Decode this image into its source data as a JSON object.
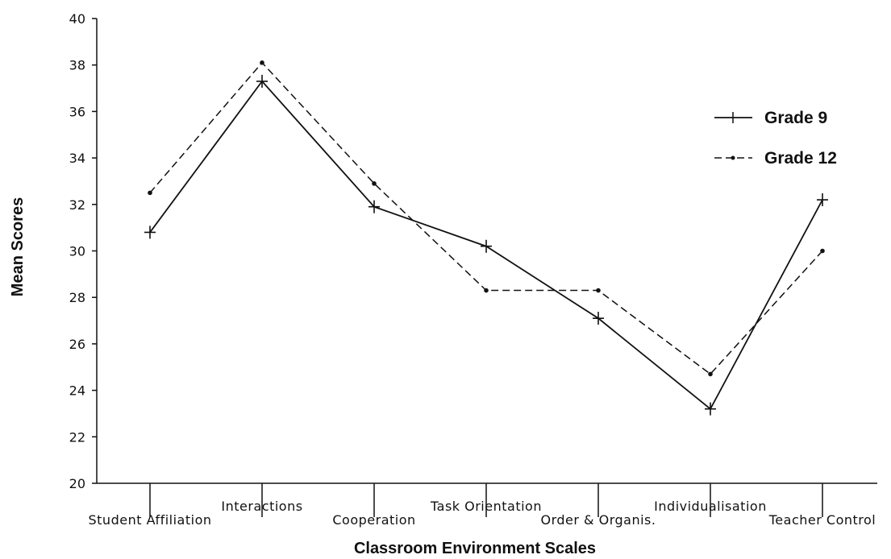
{
  "chart_data": {
    "type": "line",
    "title": "",
    "xlabel": "Classroom Environment Scales",
    "ylabel": "Mean Scores",
    "ylim": [
      20,
      40
    ],
    "yticks": [
      20,
      22,
      24,
      26,
      28,
      30,
      32,
      34,
      36,
      38,
      40
    ],
    "categories": [
      "Student Affiliation",
      "Interactions",
      "Cooperation",
      "Task Orientation",
      "Order & Organis.",
      "Individualisation",
      "Teacher Control"
    ],
    "series": [
      {
        "name": "Grade 9",
        "values": [
          30.8,
          37.3,
          31.9,
          30.2,
          27.1,
          23.2,
          32.2
        ],
        "style": "solid",
        "marker": "plus",
        "color": "#111111"
      },
      {
        "name": "Grade 12",
        "values": [
          32.5,
          38.1,
          32.9,
          28.3,
          28.3,
          24.7,
          30.0
        ],
        "style": "dashed",
        "marker": "dot",
        "color": "#111111"
      }
    ],
    "legend": {
      "placement": "top-right"
    },
    "grid": false
  }
}
